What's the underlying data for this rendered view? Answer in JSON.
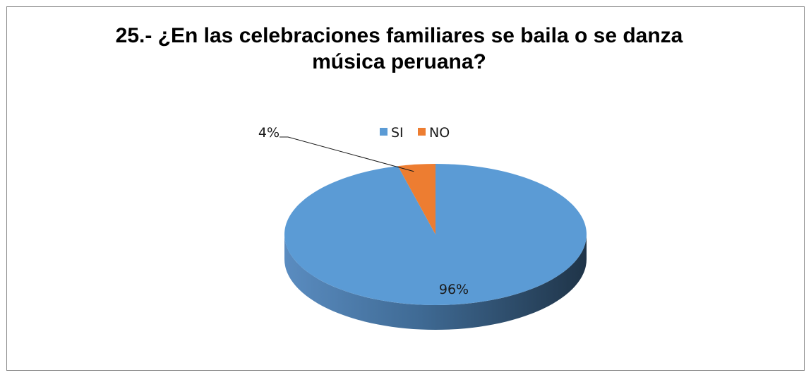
{
  "chart_data": {
    "type": "pie",
    "title": "25.- ¿En las celebraciones familiares se baila o se danza música peruana?",
    "title_lines": [
      "25.- ¿En las celebraciones familiares se baila o se danza",
      "música peruana?"
    ],
    "categories": [
      "SI",
      "NO"
    ],
    "values": [
      96,
      4
    ],
    "data_labels": [
      "96%",
      "4%"
    ],
    "colors": [
      "#5b9bd5",
      "#ed7d31"
    ],
    "legend_position": "top",
    "style": "3d"
  }
}
